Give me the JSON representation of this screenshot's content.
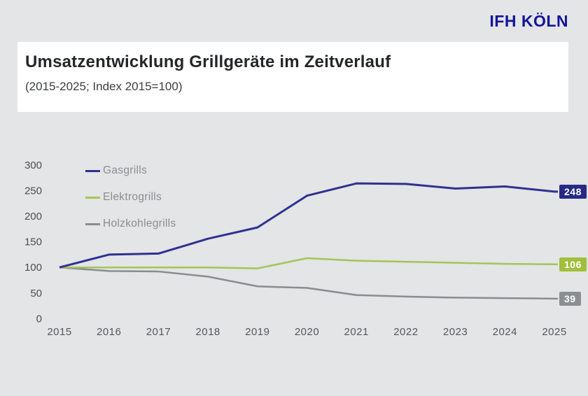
{
  "header": {
    "logo": "IFH KÖLN"
  },
  "chart_data": {
    "type": "line",
    "title": "Umsatzentwicklung Grillgeräte im Zeitverlauf",
    "subtitle": "(2015-2025; Index 2015=100)",
    "x": [
      2015,
      2016,
      2017,
      2018,
      2019,
      2020,
      2021,
      2022,
      2023,
      2024,
      2025
    ],
    "series": [
      {
        "name": "Gasgrills",
        "color": "#2e3191",
        "label_bg": "#262a85",
        "end_label": "248",
        "values": [
          100,
          125,
          127,
          156,
          178,
          240,
          264,
          263,
          254,
          258,
          248
        ]
      },
      {
        "name": "Elektrogrills",
        "color": "#a6c457",
        "label_bg": "#a0bf3b",
        "end_label": "106",
        "values": [
          100,
          100,
          100,
          100,
          98,
          118,
          113,
          111,
          109,
          107,
          106
        ]
      },
      {
        "name": "Holzkohlegrills",
        "color": "#8a8d8f",
        "label_bg": "#8c8f91",
        "end_label": "39",
        "values": [
          100,
          93,
          92,
          82,
          63,
          60,
          46,
          43,
          41,
          40,
          39
        ]
      }
    ],
    "y_ticks": [
      0,
      50,
      100,
      150,
      200,
      250,
      300
    ],
    "ylim": [
      0,
      300
    ],
    "grid": false,
    "legend_position": "top-left-inside"
  }
}
